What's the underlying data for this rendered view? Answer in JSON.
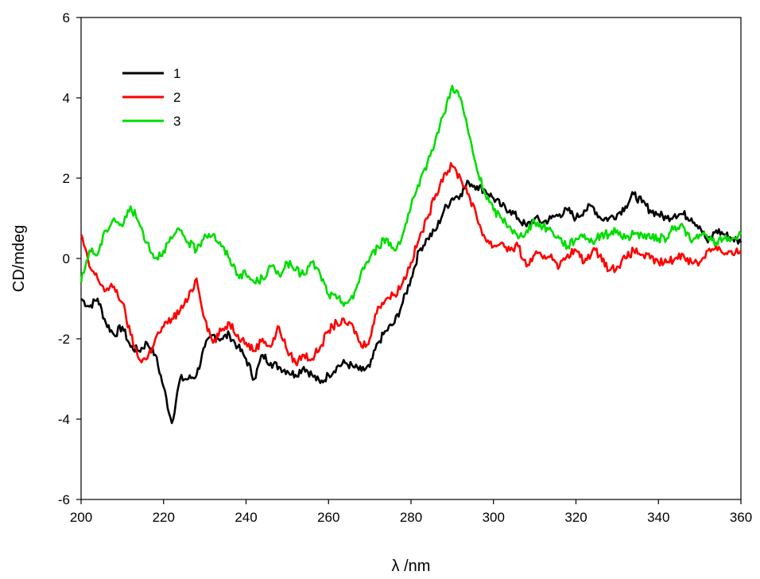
{
  "chart_data": {
    "type": "line",
    "xlabel": "λ /nm",
    "ylabel": "CD/mdeg",
    "xlim": [
      200,
      360
    ],
    "ylim": [
      -6,
      6
    ],
    "x_ticks": [
      "200",
      "220",
      "240",
      "260",
      "280",
      "300",
      "320",
      "340",
      "360"
    ],
    "y_ticks": [
      "-6",
      "-4",
      "-2",
      "0",
      "2",
      "4",
      "6"
    ],
    "grid": false,
    "legend_position": "top-left",
    "x": [
      200,
      202,
      204,
      206,
      208,
      210,
      212,
      214,
      216,
      218,
      220,
      222,
      224,
      226,
      228,
      230,
      232,
      234,
      236,
      238,
      240,
      242,
      244,
      246,
      248,
      250,
      252,
      254,
      256,
      258,
      260,
      262,
      264,
      266,
      268,
      270,
      272,
      274,
      276,
      278,
      280,
      282,
      284,
      286,
      288,
      290,
      292,
      294,
      296,
      298,
      300,
      302,
      304,
      306,
      308,
      310,
      312,
      314,
      316,
      318,
      320,
      322,
      324,
      326,
      328,
      330,
      332,
      334,
      336,
      338,
      340,
      342,
      344,
      346,
      348,
      350,
      352,
      354,
      356,
      358,
      360
    ],
    "series": [
      {
        "name": "1",
        "color": "#000000",
        "values": [
          -1.0,
          -1.2,
          -1.0,
          -1.6,
          -1.9,
          -1.7,
          -2.2,
          -2.3,
          -2.1,
          -2.4,
          -3.2,
          -4.1,
          -3.0,
          -3.0,
          -2.9,
          -2.2,
          -1.9,
          -2.0,
          -1.9,
          -2.2,
          -2.5,
          -3.0,
          -2.4,
          -2.6,
          -2.7,
          -2.8,
          -2.9,
          -2.7,
          -2.9,
          -3.1,
          -2.9,
          -2.7,
          -2.6,
          -2.7,
          -2.8,
          -2.7,
          -2.1,
          -1.8,
          -1.6,
          -1.1,
          -0.5,
          0.2,
          0.5,
          0.7,
          1.2,
          1.5,
          1.6,
          1.9,
          1.8,
          1.7,
          1.5,
          1.3,
          1.2,
          1.0,
          0.8,
          1.0,
          0.9,
          1.0,
          1.1,
          1.2,
          1.0,
          1.2,
          1.3,
          1.0,
          1.0,
          1.1,
          1.3,
          1.6,
          1.4,
          1.2,
          1.1,
          1.0,
          1.1,
          1.1,
          1.0,
          0.8,
          0.4,
          0.7,
          0.6,
          0.5,
          0.4
        ]
      },
      {
        "name": "2",
        "color": "#ff0000",
        "values": [
          0.6,
          -0.2,
          -0.5,
          -0.8,
          -0.7,
          -1.1,
          -1.9,
          -2.5,
          -2.5,
          -2.0,
          -1.7,
          -1.5,
          -1.3,
          -1.0,
          -0.5,
          -1.5,
          -2.1,
          -1.8,
          -1.6,
          -1.9,
          -2.1,
          -2.3,
          -2.0,
          -2.2,
          -1.7,
          -2.3,
          -2.6,
          -2.4,
          -2.5,
          -2.2,
          -1.8,
          -1.6,
          -1.6,
          -1.7,
          -2.2,
          -2.0,
          -1.2,
          -1.0,
          -0.9,
          -0.6,
          -0.1,
          0.5,
          1.0,
          1.6,
          2.1,
          2.3,
          2.0,
          1.6,
          1.0,
          0.5,
          0.3,
          0.4,
          0.2,
          0.3,
          -0.2,
          0.1,
          0.0,
          0.1,
          -0.2,
          0.1,
          0.2,
          -0.1,
          0.2,
          0.1,
          -0.3,
          -0.2,
          0.0,
          0.2,
          0.1,
          0.0,
          -0.1,
          -0.1,
          0.0,
          0.1,
          -0.1,
          -0.1,
          0.2,
          0.3,
          0.1,
          0.1,
          0.2
        ]
      },
      {
        "name": "3",
        "color": "#00dd00",
        "values": [
          -0.6,
          0.2,
          0.1,
          0.7,
          1.0,
          0.8,
          1.3,
          0.9,
          0.4,
          0.0,
          0.2,
          0.5,
          0.7,
          0.4,
          0.2,
          0.6,
          0.6,
          0.3,
          0.0,
          -0.4,
          -0.4,
          -0.6,
          -0.5,
          -0.2,
          -0.4,
          -0.1,
          -0.3,
          -0.4,
          -0.1,
          -0.4,
          -0.9,
          -1.0,
          -1.1,
          -1.0,
          -0.3,
          0.0,
          0.3,
          0.5,
          0.2,
          0.6,
          1.3,
          1.8,
          2.4,
          3.0,
          3.6,
          4.3,
          4.0,
          3.1,
          2.2,
          1.6,
          1.2,
          1.0,
          0.8,
          0.5,
          0.7,
          0.9,
          0.8,
          0.7,
          0.5,
          0.3,
          0.5,
          0.6,
          0.4,
          0.6,
          0.6,
          0.7,
          0.5,
          0.6,
          0.6,
          0.5,
          0.5,
          0.5,
          0.8,
          0.8,
          0.4,
          0.6,
          0.5,
          0.4,
          0.5,
          0.5,
          0.6
        ]
      }
    ]
  }
}
